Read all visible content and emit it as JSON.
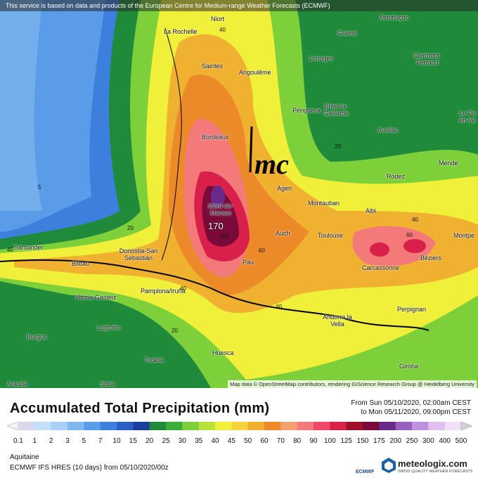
{
  "notice": "This service is based on data and products of the European Centre for Medium-range Weather Forecasts (ECMWF)",
  "cities": [
    "Niort",
    "La Rochelle",
    "Guéret",
    "Montluçon",
    "Saintes",
    "Angoulême",
    "Limoges",
    "Clermont-Ferrand",
    "Périgueux",
    "Brive-la-Gaillarde",
    "Le Pu en-Ve",
    "Bordeaux",
    "Aurillac",
    "Mende",
    "Agen",
    "Rodez",
    "Mont-de-Marsan",
    "Montauban",
    "Albi",
    "Auch",
    "Toulouse",
    "Montpe",
    "Santander",
    "Donostia-San Sebastián",
    "Bilbao",
    "Pau",
    "Carcassonne",
    "Béziers",
    "Vitoria-Gasteiz",
    "Pamplona/Iruña",
    "Logroño",
    "Perpignan",
    "Andorra la Vella",
    "Burgos",
    "Tudela",
    "Huesca",
    "Girona",
    "Aranda",
    "Soria"
  ],
  "contour_labels": [
    "40",
    "20",
    "5",
    "20",
    "40",
    "170",
    "150",
    "60",
    "40",
    "40",
    "20",
    "60",
    "40"
  ],
  "logo": "mc",
  "attribution": "Map data © OpenStreetMap contributors, rendering GIScience Research Group @ Heidelberg University",
  "title": "Accumulated Total Precipitation (mm)",
  "time_from": "From Sun 05/10/2020, 02:00am CEST",
  "time_to": "to Mon 05/11/2020, 09:00pm CEST",
  "legend": {
    "labels": [
      "0.1",
      "1",
      "2",
      "3",
      "5",
      "7",
      "10",
      "15",
      "20",
      "25",
      "30",
      "35",
      "40",
      "45",
      "50",
      "60",
      "70",
      "80",
      "90",
      "100",
      "125",
      "150",
      "175",
      "200",
      "250",
      "300",
      "400",
      "500"
    ],
    "colors": [
      "#f4f4f8",
      "#dcd6ef",
      "#c4e0f8",
      "#a8d0f5",
      "#7fb8f0",
      "#5a9ce8",
      "#3d7fdc",
      "#2a5fc8",
      "#1b3f9a",
      "#1f8a3a",
      "#3aad3a",
      "#7dd03a",
      "#b8e23a",
      "#f0f03a",
      "#f5d23a",
      "#f0b030",
      "#ec8a2a",
      "#f4a070",
      "#f47a7a",
      "#f04868",
      "#d8204a",
      "#a0102a",
      "#7a0a3a",
      "#6a2a8a",
      "#9a60c0",
      "#c090e0",
      "#e0c0f0",
      "#f0e0f8",
      "#d0d0d0"
    ]
  },
  "region": "Aquitaine",
  "model": "ECMWF IFS HRES (10 days) from 05/10/2020/00z",
  "ecmwf": "ECMWF",
  "brand": "meteologix.com",
  "tagline": "SWISS QUALITY WEATHER FORECASTS"
}
